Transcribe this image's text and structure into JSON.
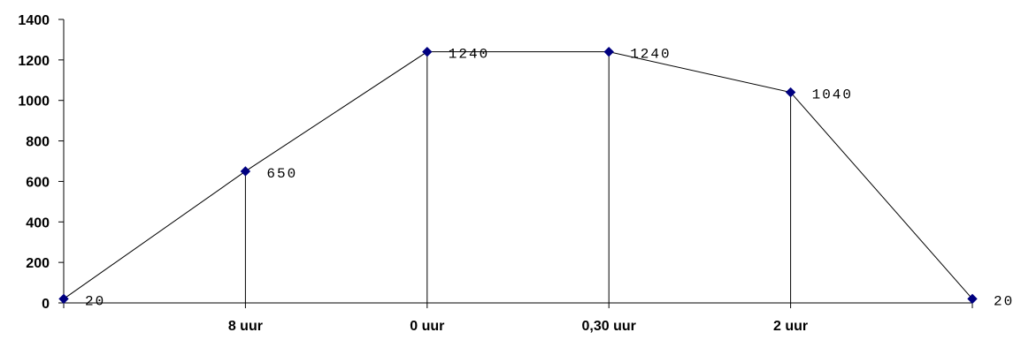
{
  "chart_data": {
    "type": "line",
    "title": "",
    "xlabel": "",
    "ylabel": "",
    "ylim": [
      0,
      1400
    ],
    "yticks": [
      0,
      200,
      400,
      600,
      800,
      1000,
      1200,
      1400
    ],
    "categories": [
      "",
      "8 uur",
      "0 uur",
      "0,30 uur",
      "2 uur",
      ""
    ],
    "series": [
      {
        "values": [
          20,
          650,
          1240,
          1240,
          1040,
          20
        ],
        "color": "#000080"
      }
    ],
    "data_labels": [
      "20",
      "650",
      "1240",
      "1240",
      "1040",
      "20"
    ],
    "grid": false,
    "legend": "none",
    "drop_lines": true
  }
}
